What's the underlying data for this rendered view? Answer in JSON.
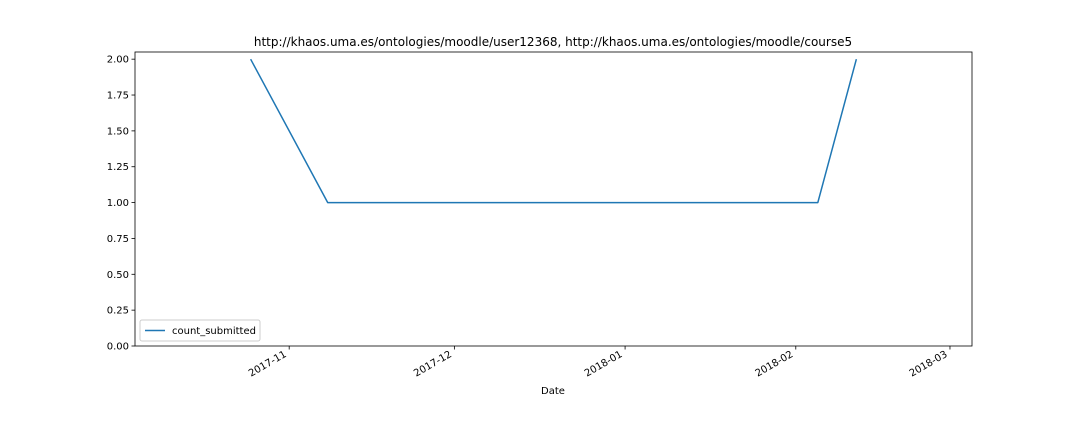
{
  "chart_data": {
    "type": "line",
    "title": "http://khaos.uma.es/ontologies/moodle/user12368, http://khaos.uma.es/ontologies/moodle/course5",
    "xlabel": "Date",
    "ylabel": "",
    "x_axis_type": "date",
    "xlim": [
      "2017-10-04",
      "2018-03-05"
    ],
    "ylim": [
      0,
      2.05
    ],
    "x_ticks": [
      {
        "value": "2017-11-01",
        "label": "2017-11"
      },
      {
        "value": "2017-12-01",
        "label": "2017-12"
      },
      {
        "value": "2018-01-01",
        "label": "2018-01"
      },
      {
        "value": "2018-02-01",
        "label": "2018-02"
      },
      {
        "value": "2018-03-01",
        "label": "2018-03"
      }
    ],
    "y_ticks": [
      {
        "value": 0.0,
        "label": "0.00"
      },
      {
        "value": 0.25,
        "label": "0.25"
      },
      {
        "value": 0.5,
        "label": "0.50"
      },
      {
        "value": 0.75,
        "label": "0.75"
      },
      {
        "value": 1.0,
        "label": "1.00"
      },
      {
        "value": 1.25,
        "label": "1.25"
      },
      {
        "value": 1.5,
        "label": "1.50"
      },
      {
        "value": 1.75,
        "label": "1.75"
      },
      {
        "value": 2.0,
        "label": "2.00"
      }
    ],
    "grid": false,
    "legend_position": "lower-left",
    "series": [
      {
        "name": "count_submitted",
        "color": "#1f77b4",
        "x": [
          "2017-10-25",
          "2017-11-08",
          "2018-02-05",
          "2018-02-12"
        ],
        "y": [
          2,
          1,
          1,
          2
        ]
      }
    ]
  }
}
